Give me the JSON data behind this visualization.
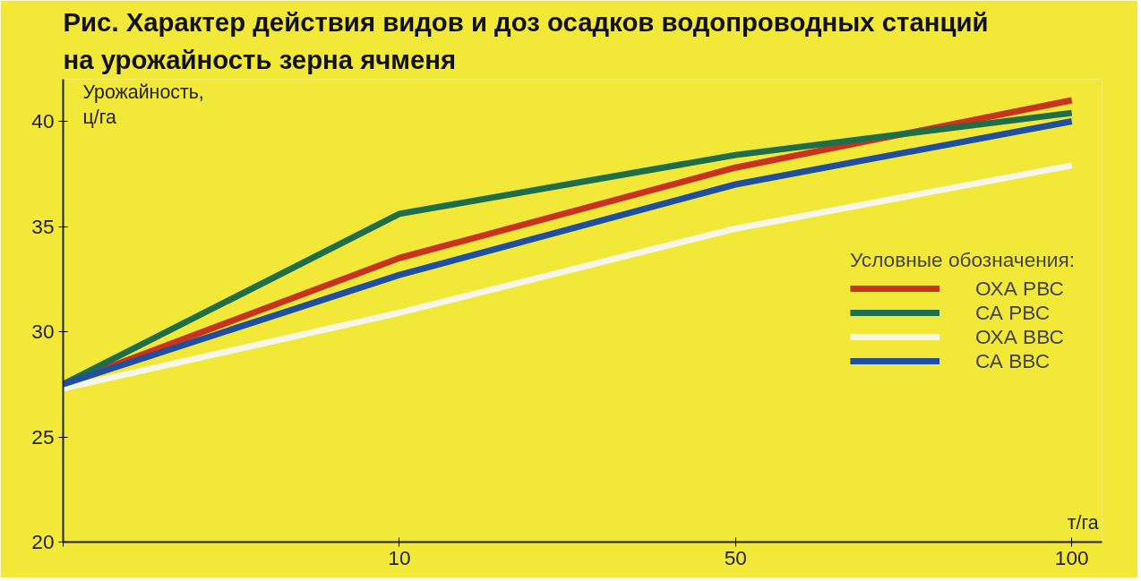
{
  "chart_data": {
    "type": "line",
    "title": "Рис. Характер действия видов и доз осадков водопроводных станций\nна урожайность зерна ячменя",
    "ylabel": "Урожайность,\nц/га",
    "xlabel": "т/га",
    "legend_title": "Условные обозначения:",
    "categories": [
      null,
      "10",
      "50",
      "100"
    ],
    "series": [
      {
        "name": "ОХА РВС",
        "color": "#c8321e",
        "values": [
          27.5,
          33.5,
          37.8,
          41.0
        ]
      },
      {
        "name": "СА РВС",
        "color": "#1e6e4a",
        "values": [
          27.5,
          35.6,
          38.4,
          40.4
        ]
      },
      {
        "name": "ОХА ВВС",
        "color": "#f6f6ea",
        "values": [
          27.3,
          30.9,
          34.9,
          37.9
        ]
      },
      {
        "name": "СА ВВС",
        "color": "#1f4fa0",
        "values": [
          27.5,
          32.7,
          37.0,
          40.0
        ]
      }
    ],
    "ylim": [
      20,
      42
    ],
    "yticks": [
      20,
      25,
      30,
      35,
      40
    ],
    "grid": false,
    "legend": "right",
    "marker": "none",
    "line_style": "solid"
  }
}
